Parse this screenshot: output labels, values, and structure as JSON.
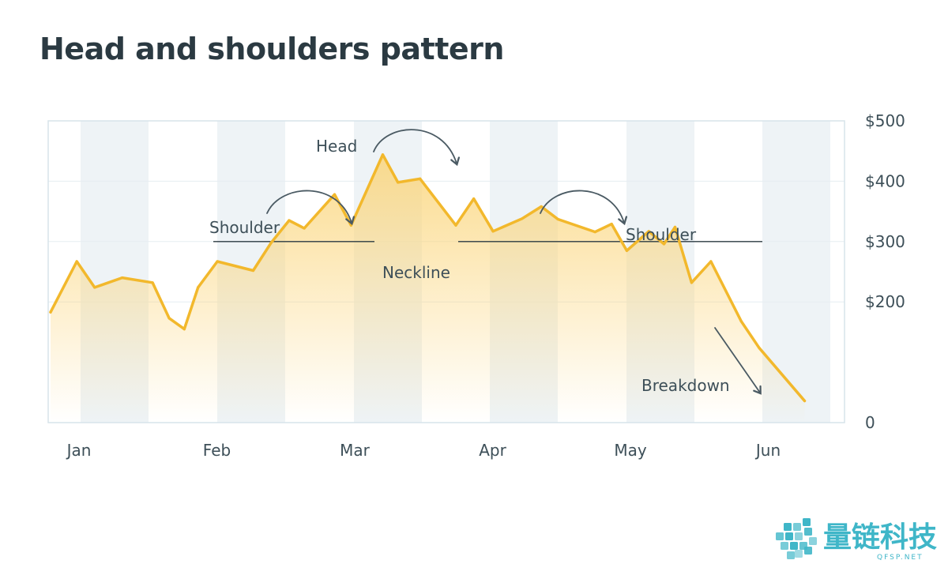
{
  "title": "Head and shoulders pattern",
  "colors": {
    "line": "#f2b82c",
    "fill_top": "#fbd57a",
    "band": "#eef3f6",
    "neckline": "#2b3a42",
    "arrow": "#4a5a63",
    "frame": "#d7e4ea",
    "grid": "#e6edf1",
    "logo": "#3fb6c8"
  },
  "chart_data": {
    "type": "area",
    "y_unit": "$",
    "ylim": [
      0,
      500
    ],
    "y_ticks": [
      {
        "value": 500,
        "label": "$500"
      },
      {
        "value": 400,
        "label": "$400"
      },
      {
        "value": 300,
        "label": "$300"
      },
      {
        "value": 200,
        "label": "$200"
      },
      {
        "value": 0,
        "label": "0"
      }
    ],
    "x_ticks": [
      "Jan",
      "Feb",
      "Mar",
      "Apr",
      "May",
      "Jun"
    ],
    "grid": true,
    "legend": "none",
    "series": [
      {
        "x": [
          0.0,
          0.19,
          0.32,
          0.52,
          0.74,
          0.86,
          0.97,
          1.07,
          1.21,
          1.47,
          1.6,
          1.73,
          1.84,
          2.06,
          2.18,
          2.41,
          2.52,
          2.68,
          2.94,
          3.07,
          3.21,
          3.42,
          3.56,
          3.68,
          3.95,
          4.07,
          4.18,
          4.34,
          4.45,
          4.53,
          4.65,
          4.79,
          5.01,
          5.14,
          5.47
        ],
        "values": [
          183,
          267,
          224,
          240,
          232,
          173,
          155,
          224,
          267,
          252,
          298,
          335,
          322,
          378,
          327,
          444,
          398,
          404,
          327,
          371,
          317,
          338,
          358,
          337,
          316,
          329,
          285,
          317,
          296,
          324,
          232,
          267,
          168,
          124,
          36
        ]
      }
    ],
    "neckline_value": 300,
    "annotations": [
      {
        "key": "head",
        "text": "Head"
      },
      {
        "key": "left_shoulder",
        "text": "Shoulder"
      },
      {
        "key": "right_shoulder",
        "text": "Shoulder"
      },
      {
        "key": "neckline",
        "text": "Neckline"
      },
      {
        "key": "breakdown",
        "text": "Breakdown"
      }
    ]
  },
  "logo": {
    "name": "量链科技",
    "site": "QFSP.NET"
  }
}
